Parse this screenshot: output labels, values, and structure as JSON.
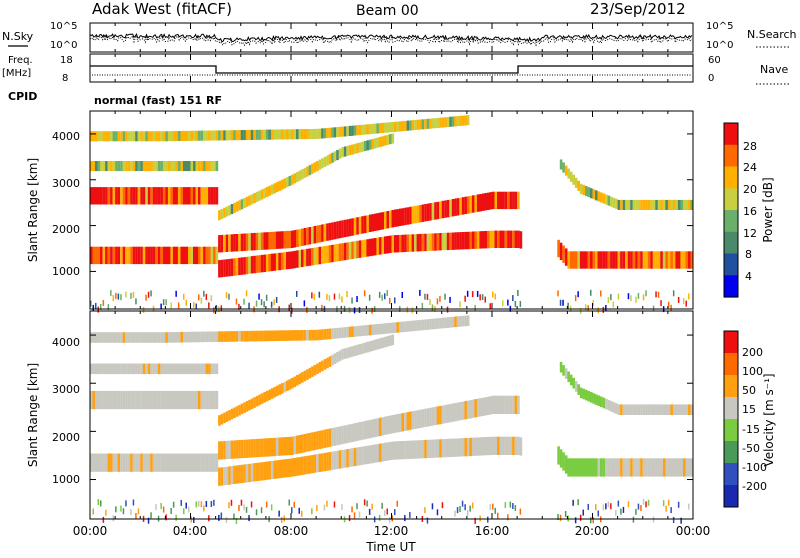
{
  "header": {
    "station": "Adak West (fitACF)",
    "beam": "Beam 00",
    "date": "23/Sep/2012"
  },
  "side_labels": {
    "nsky": "N.Sky",
    "freq_line1": "Freq.",
    "freq_line2": "[MHz]",
    "cpid": "CPID",
    "nsearch": "N.Search",
    "nave": "Nave"
  },
  "nsky_ticks": {
    "top": "10^5",
    "bottom": "10^0"
  },
  "nsearch_ticks": {
    "top": "10^5",
    "bottom": "10^0"
  },
  "freq_ticks": [
    "18",
    "8"
  ],
  "nave_ticks": [
    "60",
    "0"
  ],
  "cpid_text": "normal (fast) 151 RF",
  "x_ticks": [
    "00:00",
    "04:00",
    "08:00",
    "12:00",
    "16:00",
    "20:00",
    "00:00"
  ],
  "x_label": "Time UT",
  "power_panel": {
    "ylabel": "Slant Range [km]",
    "y_ticks": [
      "4000",
      "3000",
      "2000",
      "1000"
    ],
    "colorbar_label": "Power [dB]",
    "colorbar_ticks": [
      "28",
      "24",
      "20",
      "16",
      "12",
      "8",
      "4"
    ],
    "colors": [
      "#0000ee",
      "#2050a0",
      "#4a8a6a",
      "#6ab06a",
      "#c8d040",
      "#ffb000",
      "#ff6a00",
      "#ee1010"
    ]
  },
  "velocity_panel": {
    "ylabel": "Slant Range [km]",
    "y_ticks": [
      "4000",
      "3000",
      "2000",
      "1000"
    ],
    "colorbar_label": "Velocity [m s⁻¹]",
    "colorbar_ticks": [
      "200",
      "100",
      "50",
      "15",
      "-15",
      "-50",
      "-100",
      "-200"
    ],
    "colors": [
      "#1a2ab0",
      "#3050c0",
      "#4a9a5a",
      "#7acc40",
      "#c8c8c0",
      "#ffa010",
      "#ff6a00",
      "#ee1010"
    ]
  },
  "chart_data": {
    "type": "heatmap",
    "x_range_hours": [
      0,
      24
    ],
    "y_range_km": [
      180,
      4500
    ],
    "power_features": [
      {
        "name": "band_low",
        "t": [
          0,
          5,
          5,
          8,
          12,
          16,
          17,
          18.6,
          19,
          21,
          24
        ],
        "r": [
          1350,
          1350,
          1050,
          1250,
          1600,
          1700,
          1700,
          1500,
          1250,
          1250,
          1250
        ]
      },
      {
        "name": "band_high",
        "t": [
          0,
          5,
          5,
          8,
          12,
          16,
          17
        ],
        "r": [
          2650,
          2650,
          1600,
          1700,
          2150,
          2550,
          2550
        ]
      },
      {
        "name": "band_upper",
        "t": [
          0,
          5,
          5,
          8,
          10,
          12
        ],
        "r": [
          3300,
          3300,
          2200,
          3000,
          3600,
          3900
        ]
      },
      {
        "name": "band_top",
        "t": [
          0,
          3,
          9,
          15
        ],
        "r": [
          3950,
          3950,
          4000,
          4300
        ]
      },
      {
        "name": "band_return",
        "t": [
          18.6,
          19.5,
          21,
          24
        ],
        "r": [
          3400,
          2800,
          2450,
          2450
        ]
      }
    ]
  }
}
